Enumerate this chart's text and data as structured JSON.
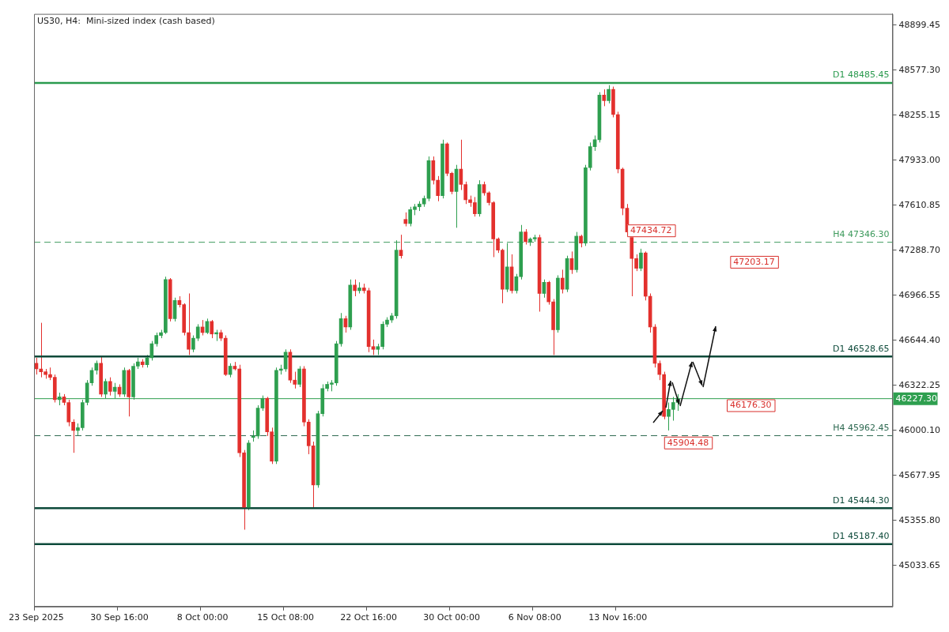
{
  "chart_data": {
    "type": "candlestick",
    "title": "US30, H4:  Mini-sized index (cash based)",
    "categories": [
      "23 Sep 2025",
      null,
      null,
      null,
      null,
      null,
      null,
      null,
      null,
      null,
      null,
      null,
      null,
      null,
      null,
      null,
      null,
      null,
      "30 Sep 16:00",
      null,
      null,
      null,
      null,
      null,
      null,
      null,
      null,
      null,
      null,
      null,
      null,
      null,
      null,
      null,
      null,
      null,
      "8 Oct 00:00",
      null,
      null,
      null,
      null,
      null,
      null,
      null,
      null,
      null,
      null,
      null,
      null,
      null,
      null,
      null,
      null,
      null,
      "15 Oct 08:00",
      null,
      null,
      null,
      null,
      null,
      null,
      null,
      null,
      null,
      null,
      null,
      null,
      null,
      null,
      null,
      null,
      null,
      "22 Oct 16:00",
      null,
      null,
      null,
      null,
      null,
      null,
      null,
      null,
      null,
      null,
      null,
      null,
      null,
      null,
      null,
      null,
      null,
      "30 Oct 00:00",
      null,
      null,
      null,
      null,
      null,
      null,
      null,
      null,
      null,
      null,
      null,
      null,
      null,
      null,
      null,
      null,
      null,
      "6 Nov 08:00",
      null,
      null,
      null,
      null,
      null,
      null,
      null,
      null,
      null,
      null,
      null,
      null,
      null,
      null,
      null,
      null,
      null,
      "13 Nov 16:00",
      null,
      null,
      null,
      null,
      null,
      null,
      null,
      null,
      null,
      null,
      null,
      null,
      null,
      null,
      null,
      null,
      null,
      null,
      null,
      null,
      null,
      null,
      null,
      null,
      null,
      null,
      null,
      null,
      null,
      null,
      null,
      null,
      null,
      null,
      null,
      null,
      null,
      null,
      null,
      null,
      null,
      null,
      null,
      null,
      null,
      null,
      null,
      null,
      null,
      null,
      null,
      null,
      null,
      null,
      null,
      null,
      null,
      null,
      null
    ],
    "ohlc": [
      [
        46480,
        46520,
        46400,
        46440
      ],
      [
        46440,
        46770,
        46380,
        46420
      ],
      [
        46420,
        46440,
        46370,
        46400
      ],
      [
        46400,
        46450,
        46360,
        46380
      ],
      [
        46380,
        46400,
        46200,
        46220
      ],
      [
        46220,
        46270,
        46180,
        46240
      ],
      [
        46240,
        46260,
        46180,
        46200
      ],
      [
        46200,
        46220,
        46030,
        46060
      ],
      [
        46060,
        46080,
        45840,
        46000
      ],
      [
        46000,
        46050,
        45960,
        46020
      ],
      [
        46020,
        46220,
        46000,
        46200
      ],
      [
        46200,
        46360,
        46180,
        46340
      ],
      [
        46340,
        46450,
        46320,
        46430
      ],
      [
        46430,
        46500,
        46400,
        46480
      ],
      [
        46480,
        46530,
        46240,
        46260
      ],
      [
        46260,
        46370,
        46230,
        46350
      ],
      [
        46350,
        46380,
        46250,
        46280
      ],
      [
        46280,
        46340,
        46230,
        46310
      ],
      [
        46310,
        46330,
        46240,
        46260
      ],
      [
        46260,
        46450,
        46240,
        46430
      ],
      [
        46430,
        46440,
        46100,
        46240
      ],
      [
        46240,
        46480,
        46220,
        46460
      ],
      [
        46460,
        46520,
        46440,
        46490
      ],
      [
        46490,
        46510,
        46450,
        46470
      ],
      [
        46470,
        46540,
        46450,
        46520
      ],
      [
        46520,
        46640,
        46500,
        46620
      ],
      [
        46620,
        46700,
        46600,
        46680
      ],
      [
        46680,
        46720,
        46660,
        46700
      ],
      [
        46700,
        47100,
        46690,
        47080
      ],
      [
        47080,
        47090,
        46780,
        46800
      ],
      [
        46800,
        46950,
        46780,
        46930
      ],
      [
        46930,
        46960,
        46880,
        46900
      ],
      [
        46900,
        46910,
        46680,
        46700
      ],
      [
        46700,
        46980,
        46540,
        46580
      ],
      [
        46580,
        46680,
        46560,
        46660
      ],
      [
        46660,
        46760,
        46640,
        46740
      ],
      [
        46740,
        46790,
        46680,
        46700
      ],
      [
        46700,
        46800,
        46690,
        46780
      ],
      [
        46780,
        46790,
        46660,
        46690
      ],
      [
        46690,
        46720,
        46640,
        46700
      ],
      [
        46700,
        46720,
        46640,
        46660
      ],
      [
        46660,
        46680,
        46390,
        46400
      ],
      [
        46400,
        46480,
        46380,
        46460
      ],
      [
        46460,
        46490,
        46430,
        46440
      ],
      [
        46440,
        46470,
        45810,
        45840
      ],
      [
        45840,
        45860,
        45290,
        45450
      ],
      [
        45450,
        45930,
        45430,
        45910
      ],
      [
        45950,
        46000,
        45920,
        45960
      ],
      [
        45960,
        46180,
        45940,
        46160
      ],
      [
        46160,
        46250,
        46140,
        46230
      ],
      [
        46230,
        46240,
        45960,
        45990
      ],
      [
        45990,
        46020,
        45760,
        45780
      ],
      [
        45780,
        46450,
        45760,
        46430
      ],
      [
        46430,
        46470,
        46400,
        46440
      ],
      [
        46440,
        46580,
        46420,
        46560
      ],
      [
        46560,
        46580,
        46340,
        46360
      ],
      [
        46360,
        46420,
        46300,
        46330
      ],
      [
        46330,
        46460,
        46310,
        46440
      ],
      [
        46440,
        46460,
        46030,
        46060
      ],
      [
        46060,
        46080,
        45830,
        45890
      ],
      [
        45890,
        45920,
        45450,
        45610
      ],
      [
        45610,
        46140,
        45590,
        46120
      ],
      [
        46120,
        46330,
        46100,
        46300
      ],
      [
        46300,
        46350,
        46280,
        46330
      ],
      [
        46330,
        46360,
        46280,
        46340
      ],
      [
        46340,
        46640,
        46320,
        46620
      ],
      [
        46620,
        46840,
        46600,
        46800
      ],
      [
        46800,
        46820,
        46700,
        46740
      ],
      [
        46740,
        47080,
        46720,
        47040
      ],
      [
        47040,
        47080,
        46960,
        47000
      ],
      [
        47000,
        47060,
        46980,
        47020
      ],
      [
        47020,
        47050,
        46980,
        47000
      ],
      [
        47000,
        47020,
        46560,
        46600
      ],
      [
        46600,
        46650,
        46540,
        46580
      ],
      [
        46580,
        46620,
        46540,
        46600
      ],
      [
        46600,
        46780,
        46580,
        46760
      ],
      [
        46760,
        46810,
        46740,
        46790
      ],
      [
        46790,
        46840,
        46770,
        46820
      ],
      [
        46820,
        47360,
        46800,
        47290
      ],
      [
        47290,
        47400,
        47230,
        47250
      ],
      [
        47510,
        47560,
        47460,
        47480
      ],
      [
        47480,
        47600,
        47460,
        47580
      ],
      [
        47580,
        47620,
        47540,
        47600
      ],
      [
        47600,
        47640,
        47570,
        47620
      ],
      [
        47620,
        47680,
        47600,
        47660
      ],
      [
        47660,
        47960,
        47640,
        47930
      ],
      [
        47930,
        47960,
        47760,
        47790
      ],
      [
        47790,
        47820,
        47640,
        47680
      ],
      [
        47680,
        48080,
        47660,
        48050
      ],
      [
        48050,
        48060,
        47820,
        47840
      ],
      [
        47840,
        47850,
        47690,
        47710
      ],
      [
        47710,
        47900,
        47450,
        47870
      ],
      [
        47870,
        48080,
        47720,
        47760
      ],
      [
        47760,
        47780,
        47620,
        47650
      ],
      [
        47650,
        47680,
        47600,
        47630
      ],
      [
        47630,
        47670,
        47530,
        47550
      ],
      [
        47550,
        47790,
        47530,
        47760
      ],
      [
        47760,
        47780,
        47680,
        47700
      ],
      [
        47700,
        47710,
        47610,
        47630
      ],
      [
        47630,
        47640,
        47240,
        47370
      ],
      [
        47370,
        47380,
        47270,
        47290
      ],
      [
        47290,
        47300,
        46910,
        47010
      ],
      [
        47010,
        47340,
        46990,
        47170
      ],
      [
        47170,
        47260,
        46980,
        47000
      ],
      [
        47000,
        47120,
        46980,
        47100
      ],
      [
        47100,
        47470,
        47080,
        47420
      ],
      [
        47420,
        47440,
        47330,
        47350
      ],
      [
        47350,
        47380,
        47320,
        47370
      ],
      [
        47370,
        47400,
        47350,
        47380
      ],
      [
        47380,
        47400,
        46850,
        46980
      ],
      [
        46980,
        47080,
        46950,
        47060
      ],
      [
        47060,
        47070,
        46900,
        46920
      ],
      [
        46920,
        46940,
        46540,
        46720
      ],
      [
        46720,
        47110,
        46700,
        47090
      ],
      [
        47090,
        47150,
        46980,
        47010
      ],
      [
        47010,
        47250,
        46990,
        47230
      ],
      [
        47230,
        47280,
        47120,
        47150
      ],
      [
        47150,
        47420,
        47130,
        47390
      ],
      [
        47390,
        47400,
        47310,
        47340
      ],
      [
        47340,
        47900,
        47320,
        47880
      ],
      [
        47880,
        48060,
        47860,
        48030
      ],
      [
        48030,
        48110,
        48000,
        48080
      ],
      [
        48080,
        48420,
        48060,
        48400
      ],
      [
        48400,
        48440,
        48320,
        48360
      ],
      [
        48360,
        48470,
        48340,
        48440
      ],
      [
        48440,
        48460,
        48240,
        48260
      ],
      [
        48260,
        48280,
        47840,
        47870
      ],
      [
        47870,
        47880,
        47540,
        47590
      ],
      [
        47590,
        47620,
        47400,
        47420
      ],
      [
        47420,
        47440,
        46960,
        47230
      ],
      [
        47230,
        47260,
        47140,
        47160
      ],
      [
        47160,
        47300,
        47140,
        47270
      ],
      [
        47270,
        47280,
        46930,
        46960
      ],
      [
        46960,
        46980,
        46700,
        46740
      ],
      [
        46740,
        46760,
        46450,
        46480
      ],
      [
        46480,
        46500,
        46360,
        46400
      ],
      [
        46400,
        46420,
        46080,
        46100
      ],
      [
        46100,
        46200,
        46000,
        46150
      ],
      [
        46150,
        46240,
        46070,
        46200
      ],
      [
        46200,
        46260,
        46140,
        46227
      ],
      null,
      null,
      null,
      null,
      null,
      null,
      null,
      null,
      null,
      null,
      null,
      null,
      null,
      null,
      null,
      null,
      null,
      null,
      null,
      null,
      null,
      null,
      null,
      null,
      null,
      null,
      null,
      null,
      null,
      null,
      null,
      null,
      null,
      null,
      null,
      null,
      null,
      null,
      null,
      null,
      null,
      null,
      null,
      null,
      null,
      null
    ],
    "colors": [
      "#e3302d",
      "#e3302d",
      "#e3302d",
      "#e3302d",
      "#e3302d",
      "#2e9f4f",
      "#e3302d",
      "#e3302d",
      "#e3302d",
      "#2e9f4f",
      "#2e9f4f",
      "#2e9f4f",
      "#2e9f4f",
      "#2e9f4f",
      "#e3302d",
      "#2e9f4f",
      "#e3302d",
      "#2e9f4f",
      "#e3302d",
      "#2e9f4f",
      "#e3302d",
      "#2e9f4f",
      "#2e9f4f",
      "#e3302d",
      "#2e9f4f",
      "#2e9f4f",
      "#2e9f4f",
      "#2e9f4f",
      "#2e9f4f",
      "#e3302d",
      "#2e9f4f",
      "#e3302d",
      "#e3302d",
      "#e3302d",
      "#2e9f4f",
      "#2e9f4f",
      "#e3302d",
      "#2e9f4f",
      "#e3302d",
      "#2e9f4f",
      "#e3302d",
      "#e3302d",
      "#2e9f4f",
      "#e3302d",
      "#e3302d",
      "#e3302d",
      "#2e9f4f",
      "#2e9f4f",
      "#2e9f4f",
      "#2e9f4f",
      "#e3302d",
      "#e3302d",
      "#2e9f4f",
      "#2e9f4f",
      "#2e9f4f",
      "#e3302d",
      "#e3302d",
      "#2e9f4f",
      "#e3302d",
      "#e3302d",
      "#e3302d",
      "#2e9f4f",
      "#2e9f4f",
      "#2e9f4f",
      "#2e9f4f",
      "#2e9f4f",
      "#2e9f4f",
      "#e3302d",
      "#2e9f4f",
      "#e3302d",
      "#2e9f4f",
      "#e3302d",
      "#e3302d",
      "#e3302d",
      "#2e9f4f",
      "#2e9f4f",
      "#2e9f4f",
      "#2e9f4f",
      "#2e9f4f",
      "#e3302d",
      "#e3302d",
      "#2e9f4f",
      "#2e9f4f",
      "#2e9f4f",
      "#2e9f4f",
      "#2e9f4f",
      "#e3302d",
      "#e3302d",
      "#2e9f4f",
      "#e3302d",
      "#e3302d",
      "#2e9f4f",
      "#e3302d",
      "#e3302d",
      "#e3302d",
      "#e3302d",
      "#2e9f4f",
      "#e3302d",
      "#e3302d",
      "#e3302d",
      "#e3302d",
      "#e3302d",
      "#2e9f4f",
      "#e3302d",
      "#2e9f4f",
      "#2e9f4f",
      "#e3302d",
      "#2e9f4f",
      "#2e9f4f",
      "#e3302d",
      "#2e9f4f",
      "#e3302d",
      "#e3302d",
      "#2e9f4f",
      "#e3302d",
      "#2e9f4f",
      "#e3302d",
      "#2e9f4f",
      "#e3302d",
      "#2e9f4f",
      "#2e9f4f",
      "#2e9f4f",
      "#2e9f4f",
      "#e3302d",
      "#2e9f4f",
      "#e3302d",
      "#e3302d",
      "#e3302d",
      "#e3302d",
      "#e3302d",
      "#e3302d",
      "#2e9f4f",
      "#e3302d",
      "#e3302d",
      "#e3302d",
      "#e3302d",
      "#e3302d",
      "#2e9f4f",
      "#2e9f4f",
      "#2e9f4f",
      null,
      null,
      null,
      null,
      null,
      null,
      null,
      null,
      null,
      null,
      null,
      null,
      null,
      null,
      null,
      null,
      null,
      null,
      null,
      null,
      null,
      null,
      null,
      null,
      null,
      null,
      null,
      null,
      null,
      null,
      null,
      null,
      null,
      null,
      null,
      null,
      null,
      null,
      null,
      null,
      null,
      null,
      null,
      null,
      null,
      null
    ],
    "ylim": [
      44740,
      48980
    ],
    "yticks": [
      48899.45,
      {
        "value": 48577.3,
        "label": "48577.30"
      },
      48255.15,
      {
        "value": 47933,
        "label": "47933.00"
      },
      47610.85,
      {
        "value": 47288.7,
        "label": "47288.70"
      },
      46966.55,
      {
        "value": 46644.4,
        "label": "46644.40"
      },
      46322.25,
      {
        "value": 46000.1,
        "label": "46000.10"
      },
      45677.95,
      {
        "value": 45355.8,
        "label": "45355.80"
      },
      45033.65
    ],
    "ref_lines": [
      {
        "axis": "y",
        "value": 48485.45,
        "label": "D1 48485.45",
        "color": "#2a9a4e"
      },
      {
        "axis": "y",
        "value": 47346.3,
        "label": "H4 47346.30",
        "color": "#3d9a5c",
        "line_style": "dashed"
      },
      {
        "axis": "y",
        "value": 46528.65,
        "label": "D1 46528.65",
        "color": "#0d4a3a"
      },
      {
        "axis": "y",
        "value": 46227.3,
        "label": "46227.30",
        "color": "#2e9f4f"
      },
      {
        "axis": "y",
        "value": 45962.45,
        "label": "H4 45962.45",
        "color": "#2f6a52",
        "line_style": "dashed"
      },
      {
        "axis": "y",
        "value": 45444.3,
        "label": "D1 45444.30",
        "color": "#0d4a3a"
      },
      {
        "axis": "y",
        "value": 45187.4,
        "label": "D1 45187.40",
        "color": "#0d4a3a"
      }
    ],
    "annotations": [
      "47434.72",
      "47203.17",
      "46176.30",
      "45904.48"
    ],
    "grid": false,
    "legend": false
  }
}
